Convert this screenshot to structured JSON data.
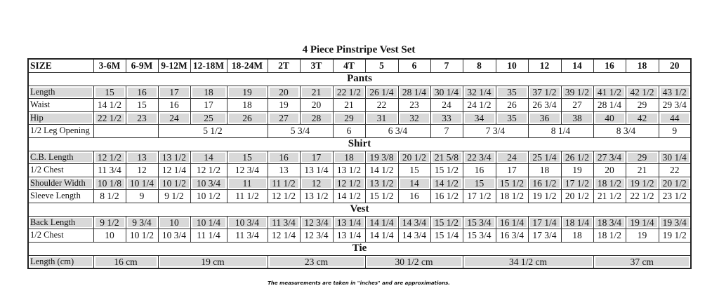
{
  "title": "4 Piece Pinstripe Vest Set",
  "header": {
    "label": "SIZE",
    "sizes": [
      "3-6M",
      "6-9M",
      "9-12M",
      "12-18M",
      "18-24M",
      "2T",
      "3T",
      "4T",
      "5",
      "6",
      "7",
      "8",
      "10",
      "12",
      "14",
      "16",
      "18",
      "20"
    ]
  },
  "sections": [
    {
      "title": "Pants",
      "rows": [
        {
          "label": "Length",
          "shaded": true,
          "cells": [
            [
              "15"
            ],
            [
              "16"
            ],
            [
              "17"
            ],
            [
              "18"
            ],
            [
              "19"
            ],
            [
              "20"
            ],
            [
              "21"
            ],
            [
              "22 1/2"
            ],
            [
              "26 1/4"
            ],
            [
              "28 1/4"
            ],
            [
              "30 1/4"
            ],
            [
              "32 1/4"
            ],
            [
              "35"
            ],
            [
              "37 1/2"
            ],
            [
              "39 1/2"
            ],
            [
              "41 1/2"
            ],
            [
              "42 1/2"
            ],
            [
              "43 1/2"
            ]
          ]
        },
        {
          "label": "Waist",
          "shaded": false,
          "cells": [
            [
              "14 1/2"
            ],
            [
              "15"
            ],
            [
              "16"
            ],
            [
              "17"
            ],
            [
              "18"
            ],
            [
              "19"
            ],
            [
              "20"
            ],
            [
              "21"
            ],
            [
              "22"
            ],
            [
              "23"
            ],
            [
              "24"
            ],
            [
              "24 1/2"
            ],
            [
              "26"
            ],
            [
              "26 3/4"
            ],
            [
              "27"
            ],
            [
              "28 1/4"
            ],
            [
              "29"
            ],
            [
              "29 3/4"
            ]
          ]
        },
        {
          "label": "Hip",
          "shaded": true,
          "cells": [
            [
              "22 1/2"
            ],
            [
              "23"
            ],
            [
              "24"
            ],
            [
              "25"
            ],
            [
              "26"
            ],
            [
              "27"
            ],
            [
              "28"
            ],
            [
              "29"
            ],
            [
              "31"
            ],
            [
              "32"
            ],
            [
              "33"
            ],
            [
              "34"
            ],
            [
              "35"
            ],
            [
              "36"
            ],
            [
              "38"
            ],
            [
              "40"
            ],
            [
              "42"
            ],
            [
              "44"
            ]
          ]
        },
        {
          "label": "1/2 Leg Opening",
          "shaded": false,
          "cells": [
            [
              "",
              2
            ],
            [
              "5 1/2",
              3
            ],
            [
              "5 3/4",
              2
            ],
            [
              "6",
              1
            ],
            [
              "6 3/4",
              2
            ],
            [
              "7",
              1
            ],
            [
              "7 3/4",
              2
            ],
            [
              "8 1/4",
              2
            ],
            [
              "8 3/4",
              2
            ],
            [
              "9",
              1
            ]
          ]
        }
      ]
    },
    {
      "title": "Shirt",
      "rows": [
        {
          "label": "C.B. Length",
          "shaded": true,
          "cells": [
            [
              "12 1/2"
            ],
            [
              "13"
            ],
            [
              "13 1/2"
            ],
            [
              "14"
            ],
            [
              "15"
            ],
            [
              "16"
            ],
            [
              "17"
            ],
            [
              "18"
            ],
            [
              "19 3/8"
            ],
            [
              "20 1/2"
            ],
            [
              "21 5/8"
            ],
            [
              "22 3/4"
            ],
            [
              "24"
            ],
            [
              "25 1/4"
            ],
            [
              "26 1/2"
            ],
            [
              "27 3/4"
            ],
            [
              "29"
            ],
            [
              "30 1/4"
            ]
          ]
        },
        {
          "label": "1/2 Chest",
          "shaded": false,
          "cells": [
            [
              "11 3/4"
            ],
            [
              "12"
            ],
            [
              "12 1/4"
            ],
            [
              "12 1/2"
            ],
            [
              "12 3/4"
            ],
            [
              "13"
            ],
            [
              "13 1/4"
            ],
            [
              "13 1/2"
            ],
            [
              "14 1/2"
            ],
            [
              "15"
            ],
            [
              "15 1/2"
            ],
            [
              "16"
            ],
            [
              "17"
            ],
            [
              "18"
            ],
            [
              "19"
            ],
            [
              "20"
            ],
            [
              "21"
            ],
            [
              "22"
            ]
          ]
        },
        {
          "label": "Shoulder Width",
          "shaded": true,
          "cells": [
            [
              "10 1/8"
            ],
            [
              "10 1/4"
            ],
            [
              "10 1/2"
            ],
            [
              "10 3/4"
            ],
            [
              "11"
            ],
            [
              "11 1/2"
            ],
            [
              "12"
            ],
            [
              "12 1/2"
            ],
            [
              "13 1/2"
            ],
            [
              "14"
            ],
            [
              "14 1/2"
            ],
            [
              "15"
            ],
            [
              "15 1/2"
            ],
            [
              "16 1/2"
            ],
            [
              "17 1/2"
            ],
            [
              "18 1/2"
            ],
            [
              "19 1/2"
            ],
            [
              "20 1/2"
            ]
          ]
        },
        {
          "label": "Sleeve Length",
          "shaded": false,
          "cells": [
            [
              "8 1/2"
            ],
            [
              "9"
            ],
            [
              "9 1/2"
            ],
            [
              "10 1/2"
            ],
            [
              "11 1/2"
            ],
            [
              "12 1/2"
            ],
            [
              "13 1/2"
            ],
            [
              "14 1/2"
            ],
            [
              "15 1/2"
            ],
            [
              "16"
            ],
            [
              "16 1/2"
            ],
            [
              "17 1/2"
            ],
            [
              "18 1/2"
            ],
            [
              "19 1/2"
            ],
            [
              "20 1/2"
            ],
            [
              "21 1/2"
            ],
            [
              "22 1/2"
            ],
            [
              "23 1/2"
            ]
          ]
        }
      ]
    },
    {
      "title": "Vest",
      "rows": [
        {
          "label": "Back Length",
          "shaded": true,
          "cells": [
            [
              "9 1/2"
            ],
            [
              "9 3/4"
            ],
            [
              "10"
            ],
            [
              "10 1/4"
            ],
            [
              "10 3/4"
            ],
            [
              "11 3/4"
            ],
            [
              "12 3/4"
            ],
            [
              "13 1/4"
            ],
            [
              "14 1/4"
            ],
            [
              "14 3/4"
            ],
            [
              "15 1/2"
            ],
            [
              "15 3/4"
            ],
            [
              "16 1/4"
            ],
            [
              "17 1/4"
            ],
            [
              "18 1/4"
            ],
            [
              "18 3/4"
            ],
            [
              "19 1/4"
            ],
            [
              "19 3/4"
            ]
          ]
        },
        {
          "label": "1/2 Chest",
          "shaded": false,
          "cells": [
            [
              "10"
            ],
            [
              "10 1/2"
            ],
            [
              "10 3/4"
            ],
            [
              "11 1/4"
            ],
            [
              "11 3/4"
            ],
            [
              "12 1/4"
            ],
            [
              "12 3/4"
            ],
            [
              "13 1/4"
            ],
            [
              "14 1/4"
            ],
            [
              "14 3/4"
            ],
            [
              "15 1/4"
            ],
            [
              "15 3/4"
            ],
            [
              "16 3/4"
            ],
            [
              "17 3/4"
            ],
            [
              "18"
            ],
            [
              "18 1/2"
            ],
            [
              "19"
            ],
            [
              "19 1/2"
            ]
          ]
        }
      ]
    },
    {
      "title": "Tie",
      "rows": [
        {
          "label": "Length (cm)",
          "shaded": true,
          "cells": [
            [
              "16 cm",
              2
            ],
            [
              "19 cm",
              3
            ],
            [
              "23 cm",
              3
            ],
            [
              "30 1/2 cm",
              3
            ],
            [
              "34 1/2 cm",
              4
            ],
            [
              "37 cm",
              3
            ]
          ]
        }
      ]
    }
  ],
  "footnote": "The measurements are taken in \"inches\" and are approximations.",
  "colors": {
    "shade": "#d9d9d9",
    "border": "#333333"
  }
}
